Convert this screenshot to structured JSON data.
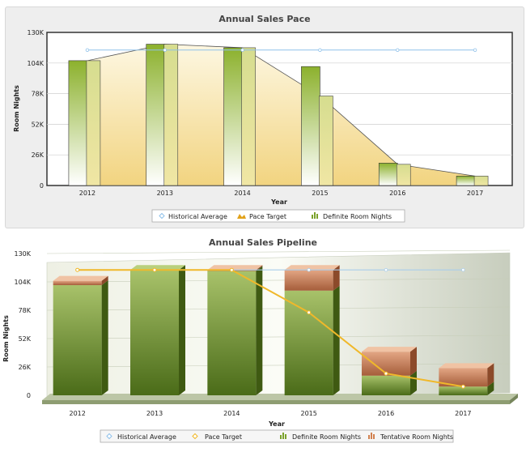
{
  "chart_data": [
    {
      "type": "bar",
      "title": "Annual Sales Pace",
      "xlabel": "Year",
      "ylabel": "Room Nights",
      "ylim": [
        0,
        130000
      ],
      "yticks": [
        "0",
        "26K",
        "52K",
        "78K",
        "104K",
        "130K"
      ],
      "categories": [
        "2012",
        "2013",
        "2014",
        "2015",
        "2016",
        "2017"
      ],
      "grid": true,
      "legend_position": "bottom-center",
      "series": [
        {
          "name": "Historical Average",
          "kind": "line",
          "color": "#8fc1ea",
          "values": [
            115000,
            115000,
            115000,
            115000,
            115000,
            115000
          ]
        },
        {
          "name": "Pace Target",
          "kind": "area",
          "color": "#f1cf6a",
          "values": [
            106000,
            120000,
            117000,
            76000,
            18000,
            8000
          ]
        },
        {
          "name": "Definite Room Nights",
          "kind": "bar",
          "color": "#8bb52c",
          "values": [
            106000,
            120000,
            117000,
            101000,
            19000,
            8000
          ]
        }
      ]
    },
    {
      "type": "bar",
      "title": "Annual Sales Pipeline",
      "xlabel": "Year",
      "ylabel": "Room Nights",
      "ylim": [
        0,
        130000
      ],
      "yticks": [
        "0",
        "26K",
        "52K",
        "78K",
        "104K",
        "130K"
      ],
      "categories": [
        "2012",
        "2013",
        "2014",
        "2015",
        "2016",
        "2017"
      ],
      "stacked": true,
      "legend_position": "bottom-center",
      "series": [
        {
          "name": "Historical Average",
          "kind": "line",
          "color": "#8fc1ea",
          "values": [
            115000,
            115000,
            115000,
            115000,
            115000,
            115000
          ]
        },
        {
          "name": "Pace Target",
          "kind": "line",
          "color": "#f0b82a",
          "values": [
            115000,
            115000,
            115000,
            76000,
            20000,
            8000
          ]
        },
        {
          "name": "Definite Room Nights",
          "kind": "bar",
          "color": "#6f9a2a",
          "values": [
            101000,
            115000,
            114000,
            96000,
            18000,
            8000
          ]
        },
        {
          "name": "Tentative Room Nights",
          "kind": "bar",
          "color": "#c77b52",
          "values": [
            4000,
            0,
            1000,
            19000,
            22000,
            17000
          ]
        }
      ]
    }
  ]
}
